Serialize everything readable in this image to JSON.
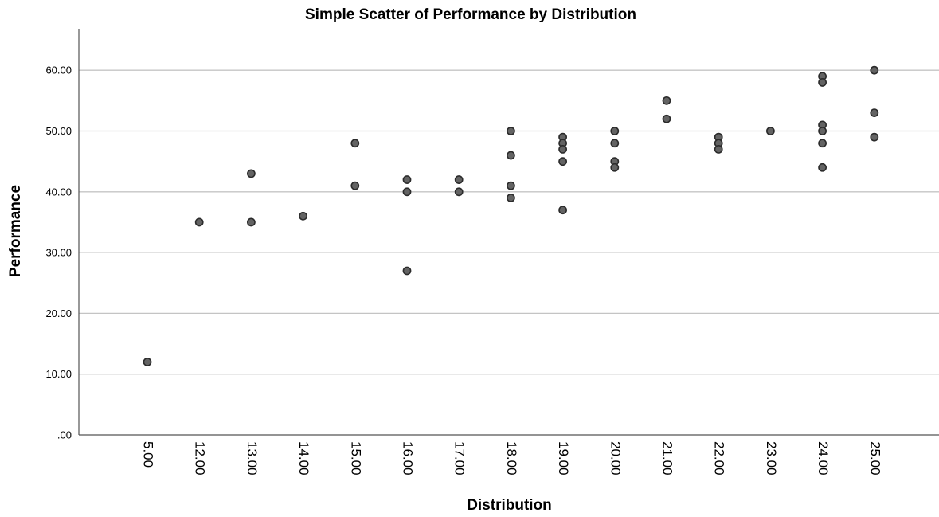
{
  "chart_data": {
    "type": "scatter",
    "title": "Simple Scatter of Performance by Distribution",
    "xlabel": "Distribution",
    "ylabel": "Performance",
    "x_axis_kind": "categorical",
    "categories": [
      "5.00",
      "12.00",
      "13.00",
      "14.00",
      "15.00",
      "16.00",
      "17.00",
      "18.00",
      "19.00",
      "20.00",
      "21.00",
      "22.00",
      "23.00",
      "24.00",
      "25.00"
    ],
    "y_ticks": [
      ".00",
      "10.00",
      "20.00",
      "30.00",
      "40.00",
      "50.00",
      "60.00"
    ],
    "ylim": [
      0,
      60
    ],
    "grid": "horizontal",
    "marker_color": "#636363",
    "marker_edge_color": "#2b2b2b",
    "points": [
      {
        "x": "5.00",
        "y": 12
      },
      {
        "x": "12.00",
        "y": 35
      },
      {
        "x": "13.00",
        "y": 43
      },
      {
        "x": "13.00",
        "y": 35
      },
      {
        "x": "14.00",
        "y": 36
      },
      {
        "x": "15.00",
        "y": 48
      },
      {
        "x": "15.00",
        "y": 41
      },
      {
        "x": "16.00",
        "y": 42
      },
      {
        "x": "16.00",
        "y": 40
      },
      {
        "x": "16.00",
        "y": 27
      },
      {
        "x": "17.00",
        "y": 42
      },
      {
        "x": "17.00",
        "y": 40
      },
      {
        "x": "18.00",
        "y": 50
      },
      {
        "x": "18.00",
        "y": 46
      },
      {
        "x": "18.00",
        "y": 41
      },
      {
        "x": "18.00",
        "y": 39
      },
      {
        "x": "19.00",
        "y": 49
      },
      {
        "x": "19.00",
        "y": 48
      },
      {
        "x": "19.00",
        "y": 47
      },
      {
        "x": "19.00",
        "y": 45
      },
      {
        "x": "19.00",
        "y": 37
      },
      {
        "x": "20.00",
        "y": 50
      },
      {
        "x": "20.00",
        "y": 48
      },
      {
        "x": "20.00",
        "y": 45
      },
      {
        "x": "20.00",
        "y": 44
      },
      {
        "x": "21.00",
        "y": 55
      },
      {
        "x": "21.00",
        "y": 52
      },
      {
        "x": "22.00",
        "y": 49
      },
      {
        "x": "22.00",
        "y": 48
      },
      {
        "x": "22.00",
        "y": 47
      },
      {
        "x": "23.00",
        "y": 50
      },
      {
        "x": "24.00",
        "y": 59
      },
      {
        "x": "24.00",
        "y": 58
      },
      {
        "x": "24.00",
        "y": 51
      },
      {
        "x": "24.00",
        "y": 50
      },
      {
        "x": "24.00",
        "y": 48
      },
      {
        "x": "24.00",
        "y": 44
      },
      {
        "x": "25.00",
        "y": 60
      },
      {
        "x": "25.00",
        "y": 53
      },
      {
        "x": "25.00",
        "y": 49
      }
    ]
  }
}
